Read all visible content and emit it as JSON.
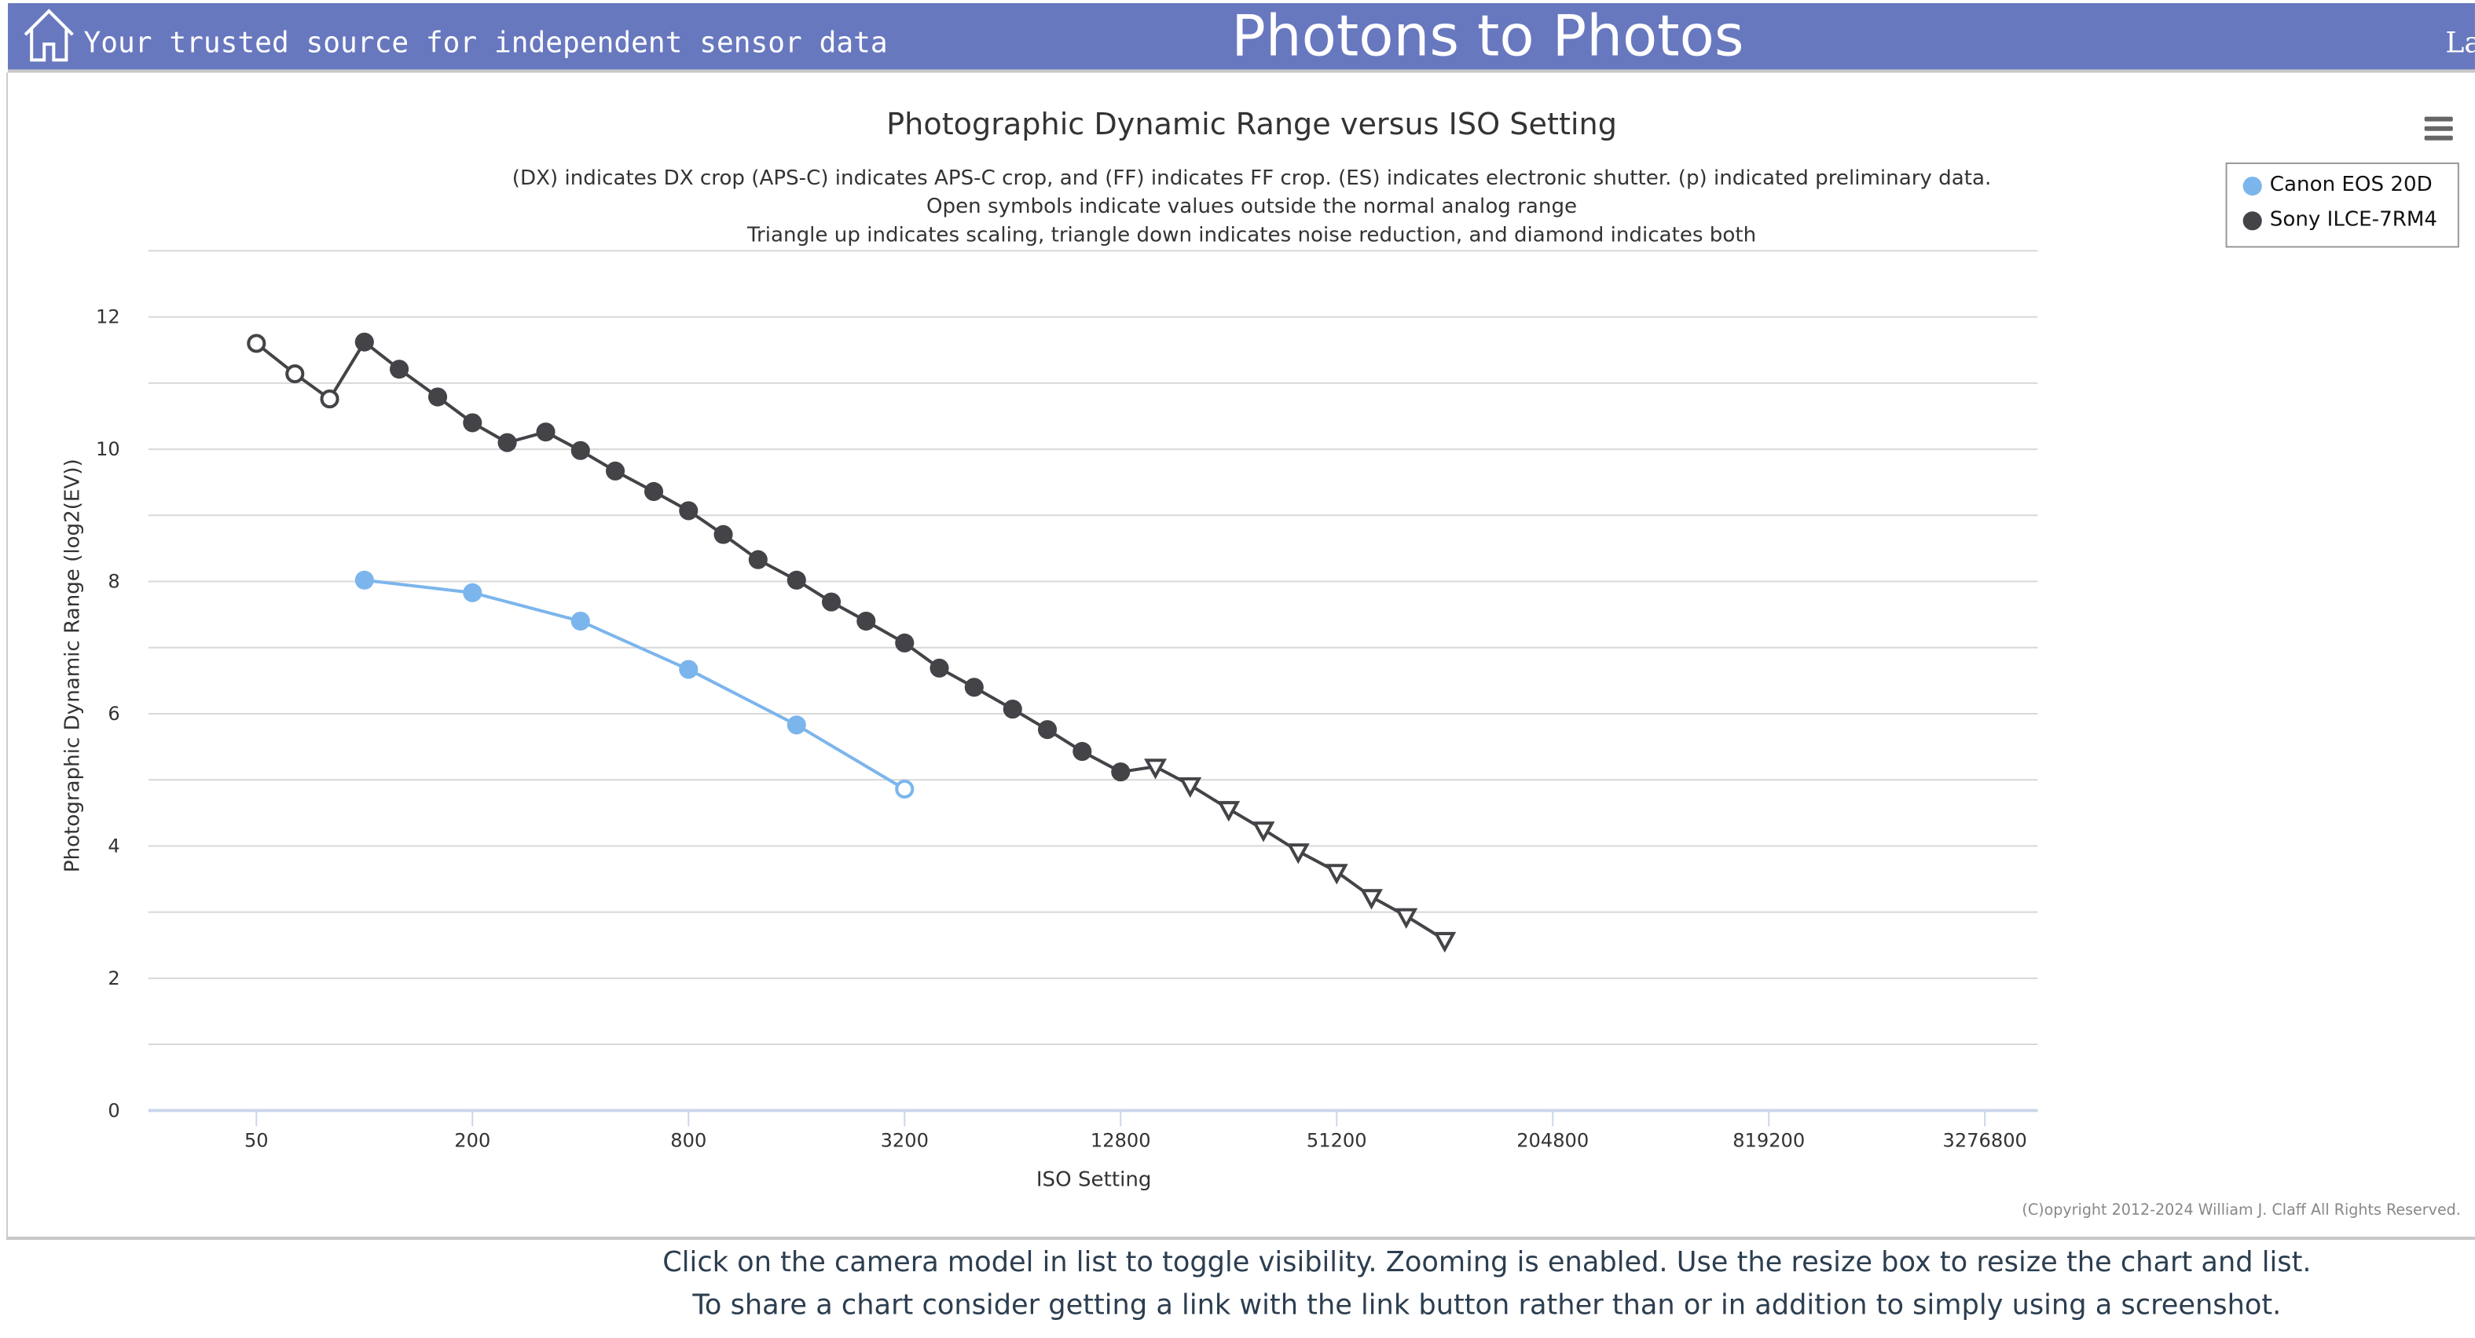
{
  "header": {
    "tagline": "Your trusted source for independent sensor data",
    "title": "Photons to Photos",
    "lang_partial": "La",
    "home_icon": "home-icon"
  },
  "colors": {
    "header_bg": "#6878bf",
    "canon": "#7cb5ec",
    "sony": "#434348"
  },
  "chart_data": {
    "type": "line",
    "title": "Photographic Dynamic Range versus ISO Setting",
    "subtitle": [
      "(DX) indicates DX crop (APS-C) indicates APS-C crop, and (FF) indicates FF crop. (ES) indicates electronic shutter. (p) indicated preliminary data.",
      "Open symbols indicate values outside the normal analog range",
      "Triangle up indicates scaling, triangle down indicates noise reduction, and diamond indicates both"
    ],
    "xlabel": "ISO Setting",
    "ylabel": "Photographic Dynamic Range (log2(EV))",
    "xscale": "log2",
    "xlim": [
      25,
      4600000
    ],
    "ylim": [
      0,
      13
    ],
    "xticks": [
      "50",
      "200",
      "800",
      "3200",
      "12800",
      "51200",
      "204800",
      "819200",
      "3276800"
    ],
    "yticks": [
      "0",
      "2",
      "4",
      "6",
      "8",
      "10",
      "12"
    ],
    "grid": true,
    "legend_position": "top-right",
    "series": [
      {
        "name": "Canon EOS 20D",
        "color": "#7cb5ec",
        "points": [
          {
            "x": 100,
            "y": 8.02
          },
          {
            "x": 200,
            "y": 7.83
          },
          {
            "x": 400,
            "y": 7.4
          },
          {
            "x": 800,
            "y": 6.67
          },
          {
            "x": 1600,
            "y": 5.83
          },
          {
            "x": 3200,
            "y": 4.86,
            "marker": "open-circle"
          }
        ]
      },
      {
        "name": "Sony ILCE-7RM4",
        "color": "#434348",
        "points": [
          {
            "x": 50,
            "y": 11.6,
            "marker": "open-circle"
          },
          {
            "x": 64,
            "y": 11.14,
            "marker": "open-circle"
          },
          {
            "x": 80,
            "y": 10.76,
            "marker": "open-circle"
          },
          {
            "x": 100,
            "y": 11.62
          },
          {
            "x": 125,
            "y": 11.21
          },
          {
            "x": 160,
            "y": 10.79
          },
          {
            "x": 200,
            "y": 10.4
          },
          {
            "x": 250,
            "y": 10.1
          },
          {
            "x": 320,
            "y": 10.26
          },
          {
            "x": 400,
            "y": 9.98
          },
          {
            "x": 500,
            "y": 9.67
          },
          {
            "x": 640,
            "y": 9.36
          },
          {
            "x": 800,
            "y": 9.07
          },
          {
            "x": 1000,
            "y": 8.71
          },
          {
            "x": 1250,
            "y": 8.33
          },
          {
            "x": 1600,
            "y": 8.02
          },
          {
            "x": 2000,
            "y": 7.69
          },
          {
            "x": 2500,
            "y": 7.4
          },
          {
            "x": 3200,
            "y": 7.07
          },
          {
            "x": 4000,
            "y": 6.69
          },
          {
            "x": 5000,
            "y": 6.4
          },
          {
            "x": 6400,
            "y": 6.07
          },
          {
            "x": 8000,
            "y": 5.76
          },
          {
            "x": 10000,
            "y": 5.43
          },
          {
            "x": 12800,
            "y": 5.12
          },
          {
            "x": 16000,
            "y": 5.2,
            "marker": "triangle-down"
          },
          {
            "x": 20000,
            "y": 4.92,
            "marker": "triangle-down"
          },
          {
            "x": 25600,
            "y": 4.56,
            "marker": "triangle-down"
          },
          {
            "x": 32000,
            "y": 4.25,
            "marker": "triangle-down"
          },
          {
            "x": 40000,
            "y": 3.92,
            "marker": "triangle-down"
          },
          {
            "x": 51200,
            "y": 3.61,
            "marker": "triangle-down"
          },
          {
            "x": 64000,
            "y": 3.23,
            "marker": "triangle-down"
          },
          {
            "x": 80000,
            "y": 2.94,
            "marker": "triangle-down"
          },
          {
            "x": 102400,
            "y": 2.58,
            "marker": "triangle-down"
          }
        ]
      }
    ]
  },
  "copyright": "(C)opyright 2012-2024 William J. Claff All Rights Reserved.",
  "footer": [
    "Click on the camera model in list to toggle visibility. Zooming is enabled. Use the resize box to resize the chart and list.",
    "To share a chart consider getting a link with the link button rather than or in addition to simply using a screenshot."
  ]
}
